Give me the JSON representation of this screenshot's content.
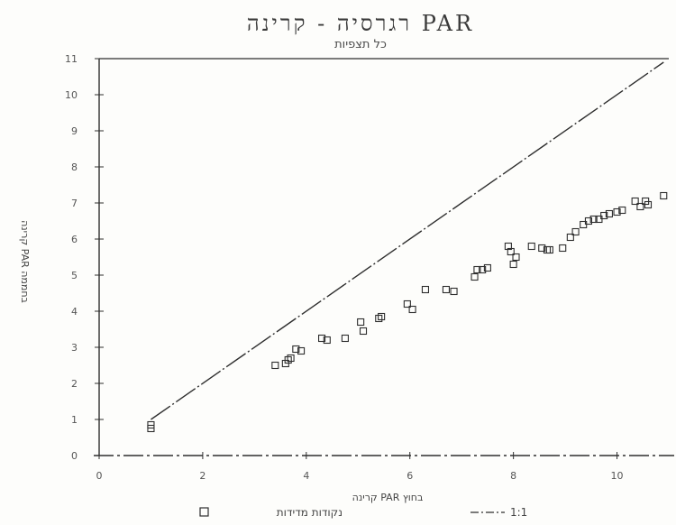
{
  "chart_data": {
    "type": "scatter",
    "title": "רגרסיה - קרינה PAR",
    "subtitle": "כל תצפיות",
    "xlabel": "קרינה PAR בחוץ",
    "ylabel": "קרינה PAR בחממה",
    "xlim": [
      0,
      11
    ],
    "ylim": [
      0,
      11
    ],
    "x_ticks": [
      "0",
      "2",
      "4",
      "6",
      "8",
      "10"
    ],
    "y_ticks": [
      "0",
      "1",
      "2",
      "3",
      "4",
      "5",
      "6",
      "7",
      "8",
      "9",
      "10",
      "11"
    ],
    "legend_position": "bottom",
    "series": [
      {
        "name": "נקודות מדידות",
        "kind": "markers",
        "points": [
          [
            1.0,
            0.85
          ],
          [
            1.0,
            0.75
          ],
          [
            3.4,
            2.5
          ],
          [
            3.6,
            2.55
          ],
          [
            3.65,
            2.65
          ],
          [
            3.7,
            2.7
          ],
          [
            3.8,
            2.95
          ],
          [
            3.9,
            2.9
          ],
          [
            4.3,
            3.25
          ],
          [
            4.4,
            3.2
          ],
          [
            4.75,
            3.25
          ],
          [
            5.05,
            3.7
          ],
          [
            5.1,
            3.45
          ],
          [
            5.4,
            3.8
          ],
          [
            5.45,
            3.85
          ],
          [
            5.95,
            4.2
          ],
          [
            6.05,
            4.05
          ],
          [
            6.3,
            4.6
          ],
          [
            6.7,
            4.6
          ],
          [
            6.85,
            4.55
          ],
          [
            7.25,
            4.95
          ],
          [
            7.3,
            5.15
          ],
          [
            7.4,
            5.15
          ],
          [
            7.5,
            5.2
          ],
          [
            7.9,
            5.8
          ],
          [
            7.95,
            5.65
          ],
          [
            8.0,
            5.3
          ],
          [
            8.05,
            5.5
          ],
          [
            8.35,
            5.8
          ],
          [
            8.55,
            5.75
          ],
          [
            8.65,
            5.7
          ],
          [
            8.7,
            5.7
          ],
          [
            8.95,
            5.75
          ],
          [
            9.1,
            6.05
          ],
          [
            9.2,
            6.2
          ],
          [
            9.35,
            6.4
          ],
          [
            9.45,
            6.5
          ],
          [
            9.55,
            6.55
          ],
          [
            9.65,
            6.55
          ],
          [
            9.75,
            6.65
          ],
          [
            9.85,
            6.7
          ],
          [
            10.0,
            6.75
          ],
          [
            10.1,
            6.8
          ],
          [
            10.35,
            7.05
          ],
          [
            10.45,
            6.9
          ],
          [
            10.55,
            7.05
          ],
          [
            10.6,
            6.95
          ],
          [
            10.9,
            7.2
          ]
        ]
      },
      {
        "name": "1:1",
        "kind": "line",
        "points": [
          [
            1.0,
            1.0
          ],
          [
            10.9,
            10.9
          ]
        ]
      }
    ]
  },
  "colors": {
    "ink": "#2e2e2e",
    "paper": "#fdfdfb"
  }
}
